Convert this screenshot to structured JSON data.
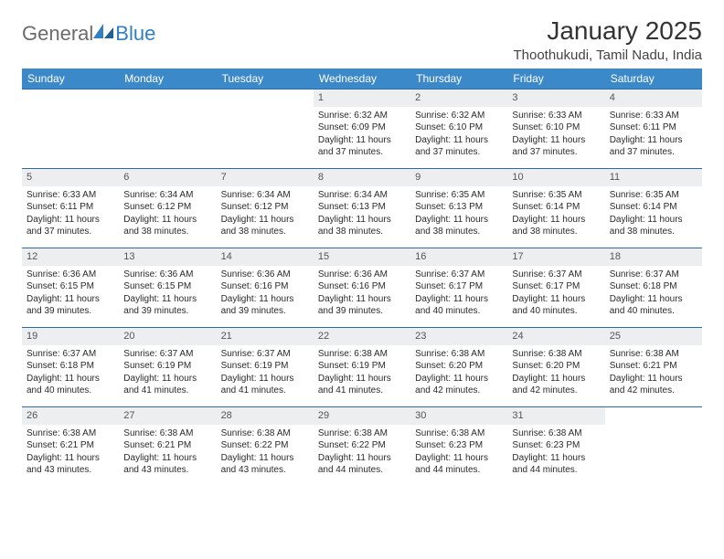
{
  "brand": {
    "part1": "General",
    "part2": "Blue"
  },
  "title": "January 2025",
  "location": "Thoothukudi, Tamil Nadu, India",
  "colors": {
    "header_bg": "#3b89c9",
    "header_text": "#ffffff",
    "week_border": "#2f6aa1",
    "daynum_bg": "#eceef0",
    "logo_gray": "#6b6b6b",
    "logo_blue": "#2f7fc2"
  },
  "day_names": [
    "Sunday",
    "Monday",
    "Tuesday",
    "Wednesday",
    "Thursday",
    "Friday",
    "Saturday"
  ],
  "weeks": [
    [
      {
        "n": "",
        "lines": []
      },
      {
        "n": "",
        "lines": []
      },
      {
        "n": "",
        "lines": []
      },
      {
        "n": "1",
        "lines": [
          "Sunrise: 6:32 AM",
          "Sunset: 6:09 PM",
          "Daylight: 11 hours",
          "and 37 minutes."
        ]
      },
      {
        "n": "2",
        "lines": [
          "Sunrise: 6:32 AM",
          "Sunset: 6:10 PM",
          "Daylight: 11 hours",
          "and 37 minutes."
        ]
      },
      {
        "n": "3",
        "lines": [
          "Sunrise: 6:33 AM",
          "Sunset: 6:10 PM",
          "Daylight: 11 hours",
          "and 37 minutes."
        ]
      },
      {
        "n": "4",
        "lines": [
          "Sunrise: 6:33 AM",
          "Sunset: 6:11 PM",
          "Daylight: 11 hours",
          "and 37 minutes."
        ]
      }
    ],
    [
      {
        "n": "5",
        "lines": [
          "Sunrise: 6:33 AM",
          "Sunset: 6:11 PM",
          "Daylight: 11 hours",
          "and 37 minutes."
        ]
      },
      {
        "n": "6",
        "lines": [
          "Sunrise: 6:34 AM",
          "Sunset: 6:12 PM",
          "Daylight: 11 hours",
          "and 38 minutes."
        ]
      },
      {
        "n": "7",
        "lines": [
          "Sunrise: 6:34 AM",
          "Sunset: 6:12 PM",
          "Daylight: 11 hours",
          "and 38 minutes."
        ]
      },
      {
        "n": "8",
        "lines": [
          "Sunrise: 6:34 AM",
          "Sunset: 6:13 PM",
          "Daylight: 11 hours",
          "and 38 minutes."
        ]
      },
      {
        "n": "9",
        "lines": [
          "Sunrise: 6:35 AM",
          "Sunset: 6:13 PM",
          "Daylight: 11 hours",
          "and 38 minutes."
        ]
      },
      {
        "n": "10",
        "lines": [
          "Sunrise: 6:35 AM",
          "Sunset: 6:14 PM",
          "Daylight: 11 hours",
          "and 38 minutes."
        ]
      },
      {
        "n": "11",
        "lines": [
          "Sunrise: 6:35 AM",
          "Sunset: 6:14 PM",
          "Daylight: 11 hours",
          "and 38 minutes."
        ]
      }
    ],
    [
      {
        "n": "12",
        "lines": [
          "Sunrise: 6:36 AM",
          "Sunset: 6:15 PM",
          "Daylight: 11 hours",
          "and 39 minutes."
        ]
      },
      {
        "n": "13",
        "lines": [
          "Sunrise: 6:36 AM",
          "Sunset: 6:15 PM",
          "Daylight: 11 hours",
          "and 39 minutes."
        ]
      },
      {
        "n": "14",
        "lines": [
          "Sunrise: 6:36 AM",
          "Sunset: 6:16 PM",
          "Daylight: 11 hours",
          "and 39 minutes."
        ]
      },
      {
        "n": "15",
        "lines": [
          "Sunrise: 6:36 AM",
          "Sunset: 6:16 PM",
          "Daylight: 11 hours",
          "and 39 minutes."
        ]
      },
      {
        "n": "16",
        "lines": [
          "Sunrise: 6:37 AM",
          "Sunset: 6:17 PM",
          "Daylight: 11 hours",
          "and 40 minutes."
        ]
      },
      {
        "n": "17",
        "lines": [
          "Sunrise: 6:37 AM",
          "Sunset: 6:17 PM",
          "Daylight: 11 hours",
          "and 40 minutes."
        ]
      },
      {
        "n": "18",
        "lines": [
          "Sunrise: 6:37 AM",
          "Sunset: 6:18 PM",
          "Daylight: 11 hours",
          "and 40 minutes."
        ]
      }
    ],
    [
      {
        "n": "19",
        "lines": [
          "Sunrise: 6:37 AM",
          "Sunset: 6:18 PM",
          "Daylight: 11 hours",
          "and 40 minutes."
        ]
      },
      {
        "n": "20",
        "lines": [
          "Sunrise: 6:37 AM",
          "Sunset: 6:19 PM",
          "Daylight: 11 hours",
          "and 41 minutes."
        ]
      },
      {
        "n": "21",
        "lines": [
          "Sunrise: 6:37 AM",
          "Sunset: 6:19 PM",
          "Daylight: 11 hours",
          "and 41 minutes."
        ]
      },
      {
        "n": "22",
        "lines": [
          "Sunrise: 6:38 AM",
          "Sunset: 6:19 PM",
          "Daylight: 11 hours",
          "and 41 minutes."
        ]
      },
      {
        "n": "23",
        "lines": [
          "Sunrise: 6:38 AM",
          "Sunset: 6:20 PM",
          "Daylight: 11 hours",
          "and 42 minutes."
        ]
      },
      {
        "n": "24",
        "lines": [
          "Sunrise: 6:38 AM",
          "Sunset: 6:20 PM",
          "Daylight: 11 hours",
          "and 42 minutes."
        ]
      },
      {
        "n": "25",
        "lines": [
          "Sunrise: 6:38 AM",
          "Sunset: 6:21 PM",
          "Daylight: 11 hours",
          "and 42 minutes."
        ]
      }
    ],
    [
      {
        "n": "26",
        "lines": [
          "Sunrise: 6:38 AM",
          "Sunset: 6:21 PM",
          "Daylight: 11 hours",
          "and 43 minutes."
        ]
      },
      {
        "n": "27",
        "lines": [
          "Sunrise: 6:38 AM",
          "Sunset: 6:21 PM",
          "Daylight: 11 hours",
          "and 43 minutes."
        ]
      },
      {
        "n": "28",
        "lines": [
          "Sunrise: 6:38 AM",
          "Sunset: 6:22 PM",
          "Daylight: 11 hours",
          "and 43 minutes."
        ]
      },
      {
        "n": "29",
        "lines": [
          "Sunrise: 6:38 AM",
          "Sunset: 6:22 PM",
          "Daylight: 11 hours",
          "and 44 minutes."
        ]
      },
      {
        "n": "30",
        "lines": [
          "Sunrise: 6:38 AM",
          "Sunset: 6:23 PM",
          "Daylight: 11 hours",
          "and 44 minutes."
        ]
      },
      {
        "n": "31",
        "lines": [
          "Sunrise: 6:38 AM",
          "Sunset: 6:23 PM",
          "Daylight: 11 hours",
          "and 44 minutes."
        ]
      },
      {
        "n": "",
        "lines": []
      }
    ]
  ]
}
